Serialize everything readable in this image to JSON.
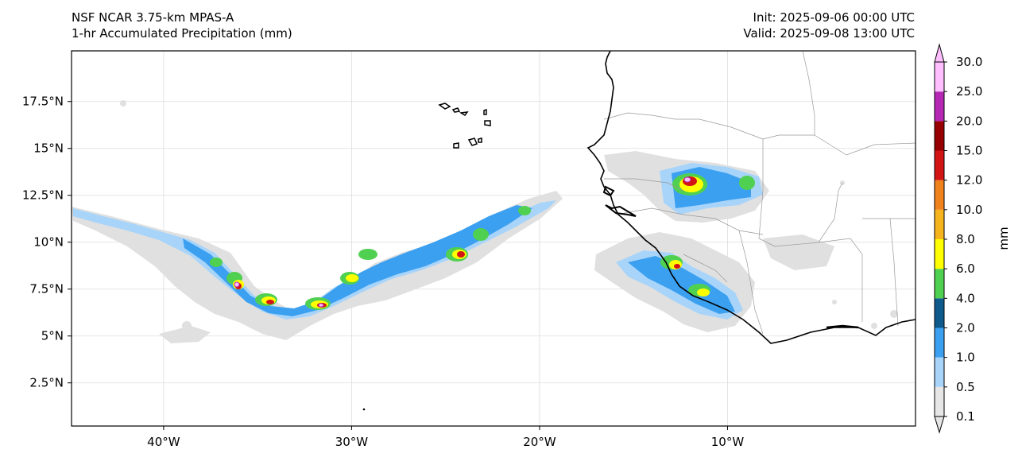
{
  "header": {
    "model": "NSF NCAR 3.75-km MPAS-A",
    "field": "1-hr Accumulated Precipitation (mm)",
    "init": "Init: 2025-09-06 00:00 UTC",
    "valid": "Valid: 2025-09-08 13:00 UTC"
  },
  "map": {
    "lon_range": [
      -44.9,
      0
    ],
    "lat_range": [
      0.2,
      20.2
    ],
    "lon_ticks": [
      {
        "lon": -40,
        "label": "40°W"
      },
      {
        "lon": -30,
        "label": "30°W"
      },
      {
        "lon": -20,
        "label": "20°W"
      },
      {
        "lon": -10,
        "label": "10°W"
      }
    ],
    "lat_ticks": [
      {
        "lat": 17.5,
        "label": "17.5°N"
      },
      {
        "lat": 15,
        "label": "15°N"
      },
      {
        "lat": 12.5,
        "label": "12.5°N"
      },
      {
        "lat": 10,
        "label": "10°N"
      },
      {
        "lat": 7.5,
        "label": "7.5°N"
      },
      {
        "lat": 5,
        "label": "5°N"
      },
      {
        "lat": 2.5,
        "label": "2.5°N"
      }
    ]
  },
  "colorbar": {
    "unit_label": "mm",
    "levels": [
      "0.1",
      "0.5",
      "1.0",
      "2.0",
      "4.0",
      "6.0",
      "8.0",
      "10.0",
      "12.0",
      "15.0",
      "20.0",
      "25.0",
      "30.0"
    ],
    "colors": [
      "#e6e6e6",
      "#a8d4fa",
      "#3ba0f0",
      "#0f5a8c",
      "#50d050",
      "#ffff00",
      "#f5b41e",
      "#f0821e",
      "#d21414",
      "#960000",
      "#b428b4",
      "#ffbeff"
    ]
  },
  "colors": {
    "light_precip": "#e0e0e0",
    "coastline": "#000000",
    "border": "#999999"
  }
}
